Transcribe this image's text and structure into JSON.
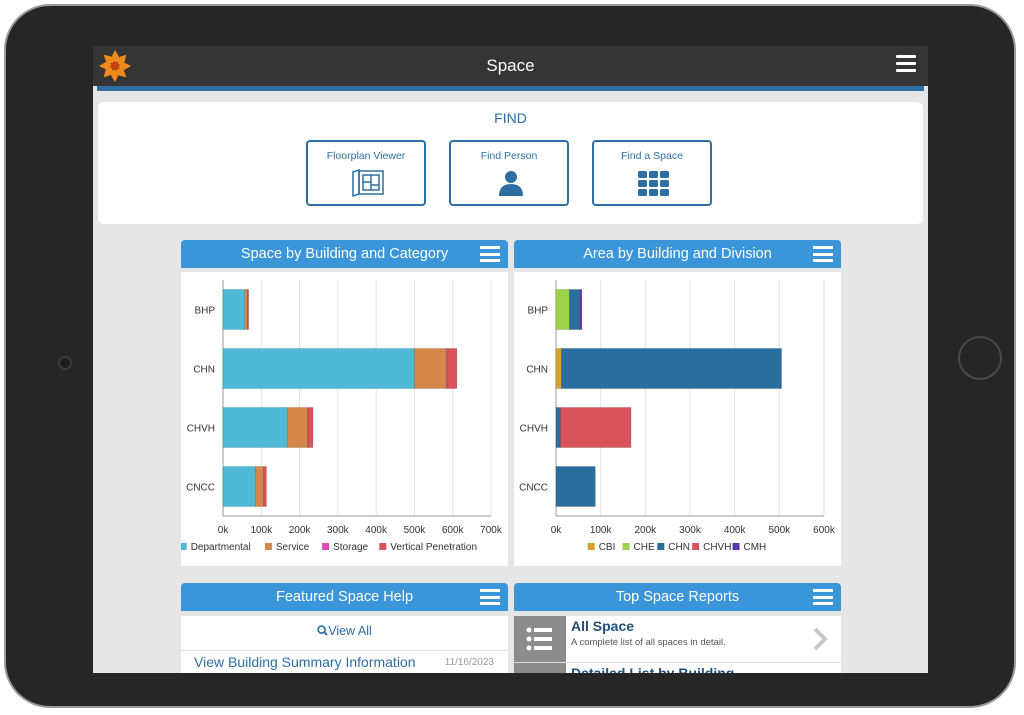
{
  "header": {
    "title": "Space"
  },
  "find": {
    "title": "FIND",
    "buttons": [
      {
        "label": "Floorplan Viewer",
        "icon": "floorplan-icon"
      },
      {
        "label": "Find Person",
        "icon": "person-icon"
      },
      {
        "label": "Find a Space",
        "icon": "grid-icon"
      }
    ]
  },
  "colors": {
    "accent": "#3a95d9",
    "brand": "#2d6fa3"
  },
  "chart_data": [
    {
      "type": "bar",
      "orientation": "horizontal",
      "stacked": true,
      "title": "Space by Building and Category",
      "categories": [
        "BHP",
        "CHN",
        "CHVH",
        "CNCC"
      ],
      "xlim": [
        0,
        700000
      ],
      "ticks": [
        "0k",
        "100k",
        "200k",
        "300k",
        "400k",
        "500k",
        "600k",
        "700k"
      ],
      "tick_values": [
        0,
        100000,
        200000,
        300000,
        400000,
        500000,
        600000,
        700000
      ],
      "series": [
        {
          "name": "Departmental",
          "color": "#4fb9d6",
          "values": [
            57000,
            500000,
            168000,
            85000
          ]
        },
        {
          "name": "Service",
          "color": "#d4874a",
          "values": [
            7000,
            83000,
            53000,
            21000
          ]
        },
        {
          "name": "Storage",
          "color": "#e04bb5",
          "values": [
            1000,
            2000,
            1000,
            500
          ]
        },
        {
          "name": "Vertical Penetration",
          "color": "#d8535a",
          "values": [
            2000,
            26000,
            13000,
            7000
          ]
        }
      ],
      "legend": "bottom",
      "grid": true
    },
    {
      "type": "bar",
      "orientation": "horizontal",
      "stacked": true,
      "title": "Area by Building and Division",
      "categories": [
        "BHP",
        "CHN",
        "CHVH",
        "CNCC"
      ],
      "xlim": [
        0,
        600000
      ],
      "ticks": [
        "0k",
        "100k",
        "200k",
        "300k",
        "400k",
        "500k",
        "600k"
      ],
      "tick_values": [
        0,
        100000,
        200000,
        300000,
        400000,
        500000,
        600000
      ],
      "series": [
        {
          "name": "CBI",
          "color": "#d9a22e",
          "values": [
            0,
            12000,
            0,
            0
          ]
        },
        {
          "name": "CHE",
          "color": "#9bd24a",
          "values": [
            30000,
            0,
            0,
            0
          ]
        },
        {
          "name": "CHN",
          "color": "#2a6e9f",
          "values": [
            23000,
            493000,
            10000,
            88000
          ]
        },
        {
          "name": "CHVH",
          "color": "#d8535a",
          "values": [
            0,
            0,
            158000,
            0
          ]
        },
        {
          "name": "CMH",
          "color": "#5a3aa8",
          "values": [
            5000,
            0,
            0,
            0
          ]
        }
      ],
      "legend": "bottom",
      "grid": true
    }
  ],
  "help": {
    "title": "Featured Space Help",
    "view_all": "View All",
    "items": [
      {
        "title": "View Building Summary Information",
        "date": "11/16/2023"
      }
    ]
  },
  "reports": {
    "title": "Top Space Reports",
    "items": [
      {
        "title": "All Space",
        "desc": "A complete list of all spaces in detail."
      },
      {
        "title": "Detailed List by Building",
        "desc": ""
      }
    ]
  }
}
